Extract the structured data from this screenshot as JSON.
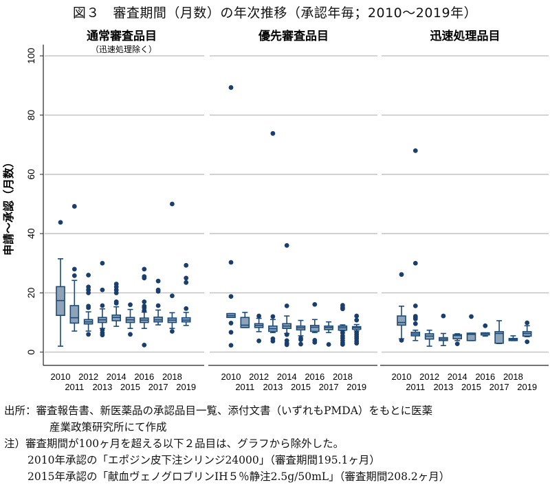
{
  "chart_data": {
    "type": "boxplot",
    "title": "図３　審査期間（月数）の年次推移（承認年毎；2010〜2019年）",
    "ylabel": "申請〜承認（月数）",
    "ylim": [
      0,
      100
    ],
    "yticks": [
      0,
      20,
      40,
      60,
      80,
      100
    ],
    "grid": true,
    "categories": [
      "2010",
      "2011",
      "2012",
      "2013",
      "2014",
      "2015",
      "2016",
      "2017",
      "2018",
      "2019"
    ],
    "colors": {
      "box_fill": "#8fa3b8",
      "box_stroke": "#1b4a78",
      "outlier": "#1b3f6c",
      "grid": "#b5b5b5"
    },
    "panels": [
      {
        "title": "通常審査品目",
        "subtitle": "（迅速処理除く）",
        "boxes": [
          {
            "year": "2010",
            "low": 2.0,
            "q1": 12.4,
            "median": 17.4,
            "q3": 22.1,
            "high": 31.5,
            "outliers": [
              43.8
            ]
          },
          {
            "year": "2011",
            "low": 7.1,
            "q1": 9.8,
            "median": 11.6,
            "q3": 15.7,
            "high": 24.2,
            "outliers": [
              25.8,
              28.0,
              49.2
            ]
          },
          {
            "year": "2012",
            "low": 7.1,
            "q1": 9.5,
            "median": 10.2,
            "q3": 11.0,
            "high": 13.6,
            "outliers": [
              6.0,
              15.0,
              15.5,
              20.0,
              21.0,
              22.0,
              26.0
            ]
          },
          {
            "year": "2013",
            "low": 8.0,
            "q1": 10.0,
            "median": 10.9,
            "q3": 11.7,
            "high": 14.6,
            "outliers": [
              5.8,
              6.5,
              7.5,
              15.7,
              21.0,
              30.0
            ]
          },
          {
            "year": "2014",
            "low": 8.7,
            "q1": 10.6,
            "median": 11.7,
            "q3": 12.5,
            "high": 15.3,
            "outliers": [
              16.5,
              17.0,
              20.0,
              21.0,
              22.0,
              23.0
            ]
          },
          {
            "year": "2015",
            "low": 8.0,
            "q1": 10.0,
            "median": 10.9,
            "q3": 11.7,
            "high": 14.4,
            "outliers": [
              6.0,
              16.0
            ]
          },
          {
            "year": "2016",
            "low": 8.0,
            "q1": 10.0,
            "median": 10.8,
            "q3": 11.5,
            "high": 13.5,
            "outliers": [
              2.4,
              14.0,
              15.0,
              15.5,
              17.0,
              25.0,
              25.5,
              28.0
            ]
          },
          {
            "year": "2017",
            "low": 9.2,
            "q1": 10.2,
            "median": 10.9,
            "q3": 11.8,
            "high": 14.2,
            "outliers": [
              15.7,
              20.5,
              21.0,
              24.0
            ]
          },
          {
            "year": "2018",
            "low": 8.0,
            "q1": 10.0,
            "median": 10.8,
            "q3": 11.5,
            "high": 13.3,
            "outliers": [
              7.0,
              19.0,
              50.0
            ]
          },
          {
            "year": "2019",
            "low": 9.0,
            "q1": 10.2,
            "median": 10.8,
            "q3": 11.6,
            "high": 13.4,
            "outliers": [
              14.7,
              23.5,
              25.0,
              29.3
            ]
          }
        ]
      },
      {
        "title": "優先審査品目",
        "subtitle": "",
        "boxes": [
          {
            "year": "2010",
            "low": 11.7,
            "q1": 11.7,
            "median": 12.3,
            "q3": 13.0,
            "high": 13.0,
            "outliers": [
              2.3,
              6.7,
              9.8,
              18.8,
              30.3,
              89.3
            ]
          },
          {
            "year": "2011",
            "low": 8.3,
            "q1": 8.3,
            "median": 9.1,
            "q3": 11.7,
            "high": 13.4,
            "outliers": []
          },
          {
            "year": "2012",
            "low": 6.9,
            "q1": 8.3,
            "median": 9.0,
            "q3": 9.6,
            "high": 11.4,
            "outliers": [
              3.8,
              12.2
            ]
          },
          {
            "year": "2013",
            "low": 6.6,
            "q1": 7.0,
            "median": 7.9,
            "q3": 8.8,
            "high": 11.0,
            "outliers": [
              3.7,
              4.5,
              12.0,
              73.8
            ]
          },
          {
            "year": "2014",
            "low": 6.3,
            "q1": 8.0,
            "median": 8.8,
            "q3": 9.6,
            "high": 12.2,
            "outliers": [
              2.5,
              3.0,
              3.9,
              5.9,
              15.6,
              36.0
            ]
          },
          {
            "year": "2015",
            "low": 5.5,
            "q1": 7.5,
            "median": 8.2,
            "q3": 8.8,
            "high": 10.7,
            "outliers": [
              2.7,
              4.2,
              4.7
            ]
          },
          {
            "year": "2016",
            "low": 6.6,
            "q1": 7.0,
            "median": 8.4,
            "q3": 9.0,
            "high": 11.0,
            "outliers": [
              3.3,
              4.0,
              16.1
            ]
          },
          {
            "year": "2017",
            "low": 6.6,
            "q1": 7.6,
            "median": 8.3,
            "q3": 8.8,
            "high": 10.2,
            "outliers": [
              2.6
            ]
          },
          {
            "year": "2018",
            "low": 7.2,
            "q1": 7.4,
            "median": 8.2,
            "q3": 8.8,
            "high": 9.2,
            "outliers": [
              2.6,
              3.1,
              3.9,
              4.7,
              5.5,
              6.5,
              14.6,
              15.1,
              15.8
            ]
          },
          {
            "year": "2019",
            "low": 7.2,
            "q1": 7.7,
            "median": 8.3,
            "q3": 8.6,
            "high": 9.3,
            "outliers": [
              3.0,
              3.7,
              4.5,
              5.2,
              5.9,
              6.6,
              10.8,
              12.2
            ]
          }
        ]
      },
      {
        "title": "迅速処理品目",
        "subtitle": "",
        "boxes": [
          {
            "year": "2010",
            "low": 4.5,
            "q1": 9.1,
            "median": 10.0,
            "q3": 12.2,
            "high": 15.5,
            "outliers": [
              4.0,
              26.2
            ]
          },
          {
            "year": "2011",
            "low": 3.9,
            "q1": 5.5,
            "median": 6.1,
            "q3": 6.7,
            "high": 7.4,
            "outliers": [
              9.6,
              11.2,
              11.6,
              12.1,
              15.6,
              30.0,
              68.0
            ]
          },
          {
            "year": "2012",
            "low": 2.0,
            "q1": 4.4,
            "median": 5.4,
            "q3": 6.2,
            "high": 7.4,
            "outliers": []
          },
          {
            "year": "2013",
            "low": 2.2,
            "q1": 3.9,
            "median": 4.4,
            "q3": 4.9,
            "high": 6.3,
            "outliers": [
              12.2
            ]
          },
          {
            "year": "2014",
            "low": 3.9,
            "q1": 4.5,
            "median": 5.6,
            "q3": 5.9,
            "high": 6.2,
            "outliers": [
              2.8
            ]
          },
          {
            "year": "2015",
            "low": 3.9,
            "q1": 3.9,
            "median": 6.0,
            "q3": 6.4,
            "high": 6.4,
            "outliers": [
              12.0
            ]
          },
          {
            "year": "2016",
            "low": 5.4,
            "q1": 5.8,
            "median": 6.3,
            "q3": 6.5,
            "high": 6.5,
            "outliers": [
              8.9
            ]
          },
          {
            "year": "2017",
            "low": 2.9,
            "q1": 3.0,
            "median": 6.3,
            "q3": 6.9,
            "high": 10.6,
            "outliers": []
          },
          {
            "year": "2018",
            "low": 3.9,
            "q1": 3.9,
            "median": 4.3,
            "q3": 4.6,
            "high": 5.5,
            "outliers": []
          },
          {
            "year": "2019",
            "low": 5.2,
            "q1": 5.4,
            "median": 6.3,
            "q3": 6.9,
            "high": 8.9,
            "outliers": [
              3.5,
              9.9
            ]
          }
        ]
      }
    ]
  },
  "notes": {
    "source_line1": "出所：審査報告書、新医薬品の承認品目一覧、添付文書（いずれもPMDA）をもとに医薬",
    "source_line2": "産業政策研究所にて作成",
    "note_line1": "注）審査期間が100ヶ月を超える以下２品目は、グラフから除外した。",
    "note_line2": "2010年承認の「エポジン皮下注シリンジ24000」（審査期間195.1ヶ月）",
    "note_line3": "2015年承認の「献血ヴェノグロブリンIH５％静注2.5g/50mL」（審査期間208.2ヶ月）"
  }
}
